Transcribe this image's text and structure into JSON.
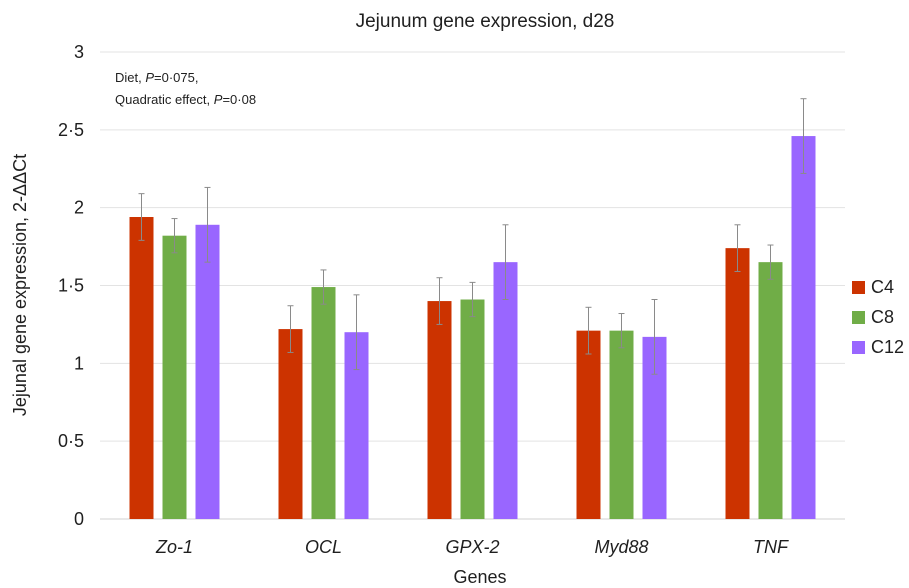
{
  "chart_data": {
    "type": "bar",
    "title": "Jejunum gene expression, d28",
    "xlabel": "Genes",
    "ylabel": "Jejunal gene expression, 2-ΔΔCt",
    "ylim": [
      0,
      3
    ],
    "yticks": [
      0,
      0.5,
      1,
      1.5,
      2,
      2.5,
      3
    ],
    "ytick_labels": [
      "0",
      "0·5",
      "1",
      "1·5",
      "2",
      "2·5",
      "3"
    ],
    "grid": true,
    "legend_position": "right",
    "categories": [
      "Zo-1",
      "OCL",
      "GPX-2",
      "Myd88",
      "TNF"
    ],
    "series": [
      {
        "name": "C4",
        "color": "#cc3300",
        "values": [
          1.94,
          1.22,
          1.4,
          1.21,
          1.74
        ],
        "errors": [
          0.15,
          0.15,
          0.15,
          0.15,
          0.15
        ]
      },
      {
        "name": "C8",
        "color": "#70ad47",
        "values": [
          1.82,
          1.49,
          1.41,
          1.21,
          1.65
        ],
        "errors": [
          0.11,
          0.11,
          0.11,
          0.11,
          0.11
        ]
      },
      {
        "name": "C12",
        "color": "#9966ff",
        "values": [
          1.89,
          1.2,
          1.65,
          1.17,
          2.46
        ],
        "errors": [
          0.24,
          0.24,
          0.24,
          0.24,
          0.24
        ]
      }
    ],
    "annotations": [
      {
        "prefix": "Diet, ",
        "italic": "P",
        "suffix": "=0·075,"
      },
      {
        "prefix": "Quadratic effect, ",
        "italic": "P",
        "suffix": "=0·08"
      }
    ]
  }
}
